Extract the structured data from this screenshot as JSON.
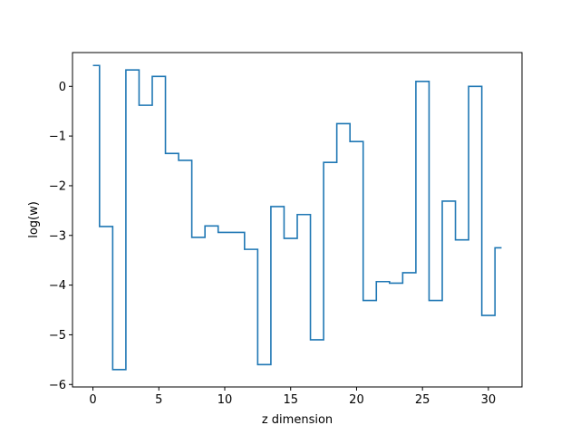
{
  "chart_data": {
    "type": "line",
    "drawstyle": "steps-mid",
    "title": "",
    "xlabel": "z dimension",
    "ylabel": "log(w)",
    "xlim": [
      -1.55,
      32.55
    ],
    "ylim": [
      -6.05,
      0.68
    ],
    "xticks": [
      0,
      5,
      10,
      15,
      20,
      25,
      30
    ],
    "yticks": [
      -6,
      -5,
      -4,
      -3,
      -2,
      -1,
      0
    ],
    "xtick_labels": [
      "0",
      "5",
      "10",
      "15",
      "20",
      "25",
      "30"
    ],
    "ytick_labels": [
      "−6",
      "−5",
      "−4",
      "−3",
      "−2",
      "−1",
      "0"
    ],
    "grid": false,
    "series": [
      {
        "color": "#1f77b4",
        "x": [
          0,
          1,
          2,
          3,
          4,
          5,
          6,
          7,
          8,
          9,
          10,
          11,
          12,
          13,
          14,
          15,
          16,
          17,
          18,
          19,
          20,
          21,
          22,
          23,
          24,
          25,
          26,
          27,
          28,
          29,
          30,
          31
        ],
        "values": [
          0.42,
          -2.82,
          -5.7,
          0.33,
          -0.38,
          0.2,
          -1.35,
          -1.49,
          -3.04,
          -2.81,
          -2.94,
          -2.94,
          -3.28,
          -5.6,
          -2.42,
          -3.06,
          -2.58,
          -5.1,
          -1.53,
          -0.75,
          -1.11,
          -4.31,
          -3.93,
          -3.96,
          -3.75,
          0.1,
          -4.31,
          -2.31,
          -3.09,
          0.0,
          -4.61,
          -3.25
        ]
      }
    ]
  }
}
